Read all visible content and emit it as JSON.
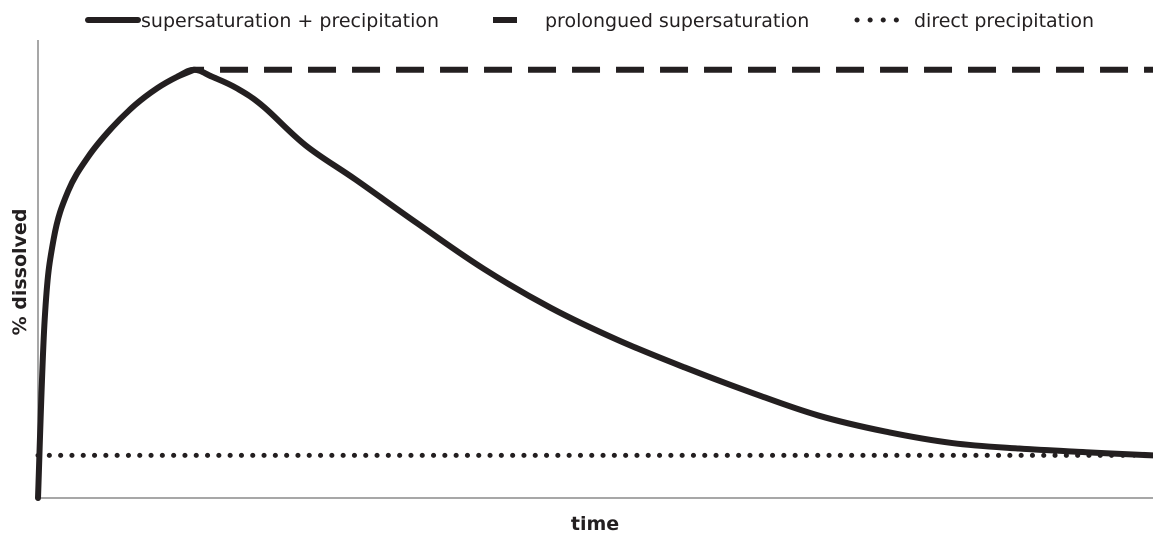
{
  "chart_data": {
    "type": "line",
    "title": "",
    "xlabel": "time",
    "ylabel": "% dissolved",
    "xlim": [
      0,
      100
    ],
    "ylim": [
      0,
      100
    ],
    "grid": false,
    "legend_position": "top",
    "line_color": "#231f20",
    "axis_color": "#8a8a8a",
    "series": [
      {
        "name": "supersaturation + precipitation",
        "line_style": "solid",
        "x": [
          0,
          0.6,
          1.4,
          2.7,
          4.5,
          6.5,
          8.7,
          10.7,
          12.5,
          14.0,
          15.6,
          17.8,
          20.2,
          24.0,
          28.5,
          34.0,
          40.0,
          46.0,
          52.0,
          58.0,
          64.0,
          70.0,
          76.0,
          82.0,
          88.0,
          94.0,
          100.0
        ],
        "y": [
          0,
          39.0,
          56.5,
          67.0,
          74.5,
          80.5,
          85.8,
          89.5,
          92.0,
          93.5,
          92.0,
          89.5,
          85.5,
          77.0,
          69.5,
          60.0,
          50.0,
          41.5,
          34.5,
          28.5,
          23.0,
          18.0,
          14.5,
          12.0,
          10.8,
          10.0,
          9.3
        ]
      },
      {
        "name": "prolongued supersaturation",
        "line_style": "dashed",
        "x": [
          12.5,
          14.0,
          100.0
        ],
        "y": [
          92.0,
          93.5,
          93.5
        ]
      },
      {
        "name": "direct precipitation",
        "line_style": "dotted",
        "x": [
          0,
          100
        ],
        "y": [
          9.3,
          9.3
        ]
      }
    ]
  }
}
